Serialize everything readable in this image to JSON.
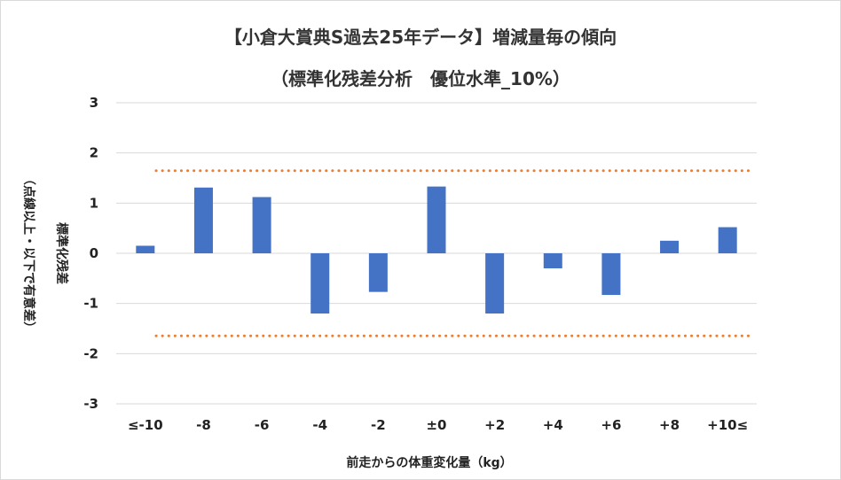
{
  "chart_data": {
    "type": "bar",
    "title": [
      "【小倉大賞典S過去25年データ】増減量毎の傾向",
      "（標準化残差分析　優位水準_10%）"
    ],
    "xlabel": "前走からの体重変化量（kg）",
    "ylabel": "標準化残差",
    "ylabel_note": "（点線以上・以下で有意差）",
    "categories": [
      "≤-10",
      "-8",
      "-6",
      "-4",
      "-2",
      "±0",
      "+2",
      "+4",
      "+6",
      "+8",
      "+10≤"
    ],
    "values": [
      0.15,
      1.31,
      1.12,
      -1.2,
      -0.77,
      1.33,
      -1.2,
      -0.3,
      -0.83,
      0.25,
      0.52
    ],
    "ylim": [
      -3,
      3
    ],
    "yticks": [
      "-3",
      "-2",
      "-1",
      "0",
      "1",
      "2",
      "3"
    ],
    "threshold": 1.645,
    "grid": true,
    "colors": {
      "bar": "#4472c4",
      "threshold": "#ed7d31",
      "grid": "#d9d9d9"
    }
  }
}
